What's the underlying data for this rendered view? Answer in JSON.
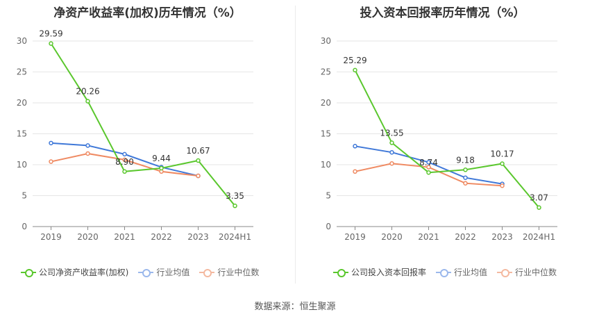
{
  "source_text": "数据来源：恒生聚源",
  "colors": {
    "company": "#5ac72d",
    "avg": "#3f78d8",
    "median": "#ef8a62",
    "grid": "#e6e6e6",
    "axis": "#888888"
  },
  "chart_data": [
    {
      "type": "line",
      "title": "净资产收益率(加权)历年情况（%）",
      "categories": [
        "2019",
        "2020",
        "2021",
        "2022",
        "2023",
        "2024H1"
      ],
      "ylim": [
        0,
        30
      ],
      "yticks": [
        0,
        5,
        10,
        15,
        20,
        25,
        30
      ],
      "grid": true,
      "legend_position": "bottom",
      "series": [
        {
          "name": "公司净资产收益率(加权)",
          "key": "company",
          "values": [
            29.59,
            20.26,
            8.9,
            9.44,
            10.67,
            3.35
          ],
          "labels": [
            "29.59",
            "20.26",
            "8.90",
            "9.44",
            "10.67",
            "3.35"
          ]
        },
        {
          "name": "行业均值",
          "key": "avg",
          "values": [
            13.5,
            13.1,
            11.7,
            9.6,
            8.2,
            null
          ]
        },
        {
          "name": "行业中位数",
          "key": "median",
          "values": [
            10.5,
            11.8,
            10.8,
            8.9,
            8.2,
            null
          ]
        }
      ]
    },
    {
      "type": "line",
      "title": "投入资本回报率历年情况（%）",
      "categories": [
        "2019",
        "2020",
        "2021",
        "2022",
        "2023",
        "2024H1"
      ],
      "ylim": [
        0,
        30
      ],
      "yticks": [
        0,
        5,
        10,
        15,
        20,
        25,
        30
      ],
      "grid": true,
      "legend_position": "bottom",
      "series": [
        {
          "name": "公司投入资本回报率",
          "key": "company",
          "values": [
            25.29,
            13.55,
            8.74,
            9.18,
            10.17,
            3.07
          ],
          "labels": [
            "25.29",
            "13.55",
            "8.74",
            "9.18",
            "10.17",
            "3.07"
          ]
        },
        {
          "name": "行业均值",
          "key": "avg",
          "values": [
            13.0,
            12.0,
            10.4,
            7.9,
            6.9,
            null
          ]
        },
        {
          "name": "行业中位数",
          "key": "median",
          "values": [
            8.9,
            10.2,
            9.6,
            7.0,
            6.6,
            null
          ]
        }
      ]
    }
  ]
}
